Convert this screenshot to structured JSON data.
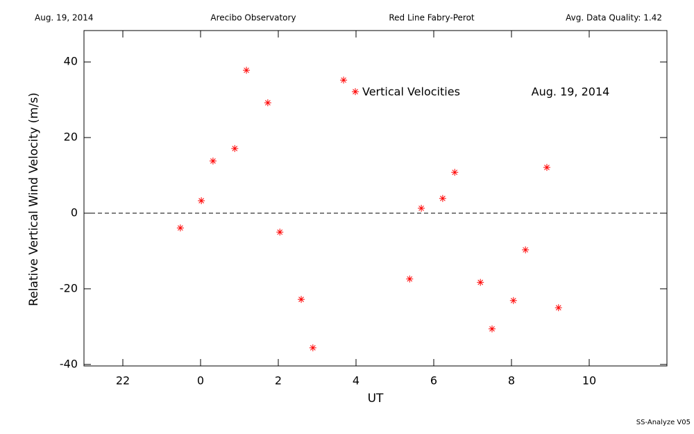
{
  "chart_data": {
    "type": "scatter",
    "header": [
      "Aug. 19, 2014",
      "Arecibo Observatory",
      "Red Line Fabry-Perot",
      "Avg. Data Quality: 1.42"
    ],
    "xlabel": "UT",
    "ylabel": "Relative Vertical Wind Velocity (m/s)",
    "annotation": "Aug. 19, 2014",
    "footer": "SS-Analyze V05",
    "series": [
      {
        "name": "Vertical Velocities",
        "color": "#ff0000",
        "x": [
          -0.52,
          0.02,
          0.32,
          0.88,
          1.18,
          1.73,
          2.04,
          2.59,
          2.89,
          3.68,
          5.38,
          5.68,
          6.23,
          6.54,
          7.2,
          7.5,
          8.05,
          8.36,
          8.91,
          9.21
        ],
        "values": [
          -3.9,
          3.3,
          13.8,
          17.1,
          37.8,
          29.2,
          -5.0,
          -22.8,
          -35.6,
          35.2,
          -17.4,
          1.3,
          3.9,
          10.8,
          -18.3,
          -30.6,
          -23.1,
          -9.7,
          12.1,
          -25.0
        ]
      }
    ],
    "xlim": [
      -3,
      12
    ],
    "xticks": [
      {
        "value": -2,
        "label": "22"
      },
      0,
      2,
      4,
      6,
      8,
      10
    ],
    "ylim": [
      -40.4,
      48.3
    ],
    "yticks": [
      -40,
      -20,
      0,
      20,
      40
    ],
    "hline": 0
  }
}
